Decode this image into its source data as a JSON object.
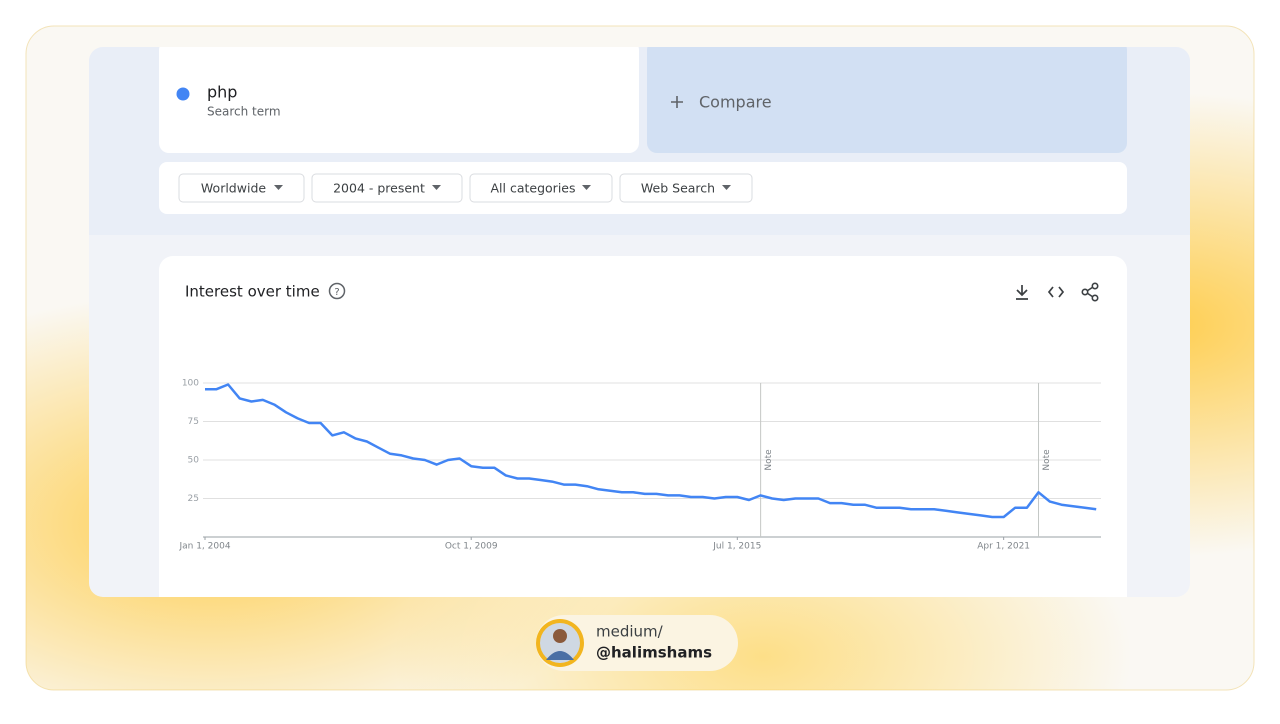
{
  "search": {
    "term": "php",
    "term_label": "Search term",
    "compare": "Compare"
  },
  "filters": [
    "Worldwide",
    "2004 - present",
    "All categories",
    "Web Search"
  ],
  "card": {
    "title": "Interest over time"
  },
  "footer": {
    "line1": "medium/",
    "line2": "@halimshams"
  },
  "chart_data": {
    "type": "line",
    "x": [
      "2004-01-01",
      "2004-04-01",
      "2004-07-01",
      "2004-10-01",
      "2005-01-01",
      "2005-04-01",
      "2005-07-01",
      "2005-10-01",
      "2006-01-01",
      "2006-04-01",
      "2006-07-01",
      "2006-10-01",
      "2007-01-01",
      "2007-04-01",
      "2007-07-01",
      "2007-10-01",
      "2008-01-01",
      "2008-04-01",
      "2008-07-01",
      "2008-10-01",
      "2009-01-01",
      "2009-04-01",
      "2009-07-01",
      "2009-10-01",
      "2010-01-01",
      "2010-04-01",
      "2010-07-01",
      "2010-10-01",
      "2011-01-01",
      "2011-04-01",
      "2011-07-01",
      "2011-10-01",
      "2012-01-01",
      "2012-04-01",
      "2012-07-01",
      "2012-10-01",
      "2013-01-01",
      "2013-04-01",
      "2013-07-01",
      "2013-10-01",
      "2014-01-01",
      "2014-04-01",
      "2014-07-01",
      "2014-10-01",
      "2015-01-01",
      "2015-04-01",
      "2015-07-01",
      "2015-10-01",
      "2016-01-01",
      "2016-04-01",
      "2016-07-01",
      "2016-10-01",
      "2017-01-01",
      "2017-04-01",
      "2017-07-01",
      "2017-10-01",
      "2018-01-01",
      "2018-04-01",
      "2018-07-01",
      "2018-10-01",
      "2019-01-01",
      "2019-04-01",
      "2019-07-01",
      "2019-10-01",
      "2020-01-01",
      "2020-04-01",
      "2020-07-01",
      "2020-10-01",
      "2021-01-01",
      "2021-04-01",
      "2021-07-01",
      "2021-10-01",
      "2022-01-01",
      "2022-04-01",
      "2022-07-01",
      "2022-10-01",
      "2023-01-01",
      "2023-04-01"
    ],
    "series": [
      {
        "name": "php",
        "color": "#4285f4",
        "values": [
          96,
          96,
          99,
          90,
          88,
          89,
          86,
          81,
          77,
          74,
          74,
          66,
          68,
          64,
          62,
          58,
          54,
          53,
          51,
          50,
          47,
          50,
          51,
          46,
          45,
          45,
          40,
          38,
          38,
          37,
          36,
          34,
          34,
          33,
          31,
          30,
          29,
          29,
          28,
          28,
          27,
          27,
          26,
          26,
          25,
          26,
          26,
          24,
          27,
          25,
          24,
          25,
          25,
          25,
          22,
          22,
          21,
          21,
          19,
          19,
          19,
          18,
          18,
          18,
          17,
          16,
          15,
          14,
          13,
          13,
          19,
          19,
          29,
          23,
          21,
          20,
          19,
          18
        ]
      }
    ],
    "xlim": [
      "2004-01-01",
      "2023-05-01"
    ],
    "xticks": [
      {
        "value": "2004-01-01",
        "label": "Jan 1, 2004"
      },
      {
        "value": "2009-10-01",
        "label": "Oct 1, 2009"
      },
      {
        "value": "2015-07-01",
        "label": "Jul 1, 2015"
      },
      {
        "value": "2021-04-01",
        "label": "Apr 1, 2021"
      }
    ],
    "ylim": [
      0,
      100
    ],
    "yticks": [
      25,
      50,
      75,
      100
    ],
    "grid": true,
    "annotations": [
      {
        "x": "2016-01-01",
        "label": "Note"
      },
      {
        "x": "2022-01-01",
        "label": "Note"
      }
    ]
  }
}
